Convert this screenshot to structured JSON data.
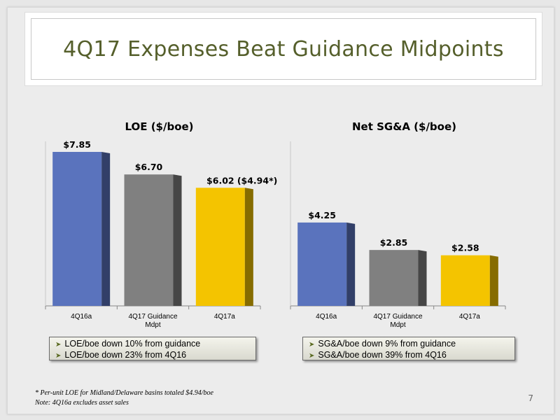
{
  "slide": {
    "title": "4Q17 Expenses Beat Guidance Midpoints",
    "page_number": "7"
  },
  "colors": {
    "blue": "#5a73bd",
    "gray": "#808080",
    "yellow": "#f4c400",
    "title": "#555f2b"
  },
  "chart_data": [
    {
      "type": "bar",
      "title": "LOE ($/boe)",
      "categories": [
        "4Q16a",
        "4Q17 Guidance Mdpt",
        "4Q17a"
      ],
      "values": [
        7.85,
        6.7,
        6.02
      ],
      "data_labels": [
        "$7.85",
        "$6.70",
        "$6.02"
      ],
      "extra_label": "($4.94*)",
      "ylim": [
        0,
        8.1
      ],
      "colors": [
        "#5a73bd",
        "#808080",
        "#f4c400"
      ]
    },
    {
      "type": "bar",
      "title": "Net SG&A ($/boe)",
      "categories": [
        "4Q16a",
        "4Q17 Guidance Mdpt",
        "4Q17a"
      ],
      "values": [
        4.25,
        2.85,
        2.58
      ],
      "data_labels": [
        "$4.25",
        "$2.85",
        "$2.58"
      ],
      "ylim": [
        0,
        8.1
      ],
      "colors": [
        "#5a73bd",
        "#808080",
        "#f4c400"
      ]
    }
  ],
  "notes": {
    "loe": [
      "LOE/boe down 10% from guidance",
      "LOE/boe down 23% from 4Q16"
    ],
    "sga": [
      "SG&A/boe down 9% from guidance",
      "SG&A/boe down 39% from 4Q16"
    ]
  },
  "footnotes": [
    "* Per-unit LOE for Midland/Delaware basins totaled $4.94/boe",
    "Note: 4Q16a excludes asset sales"
  ]
}
